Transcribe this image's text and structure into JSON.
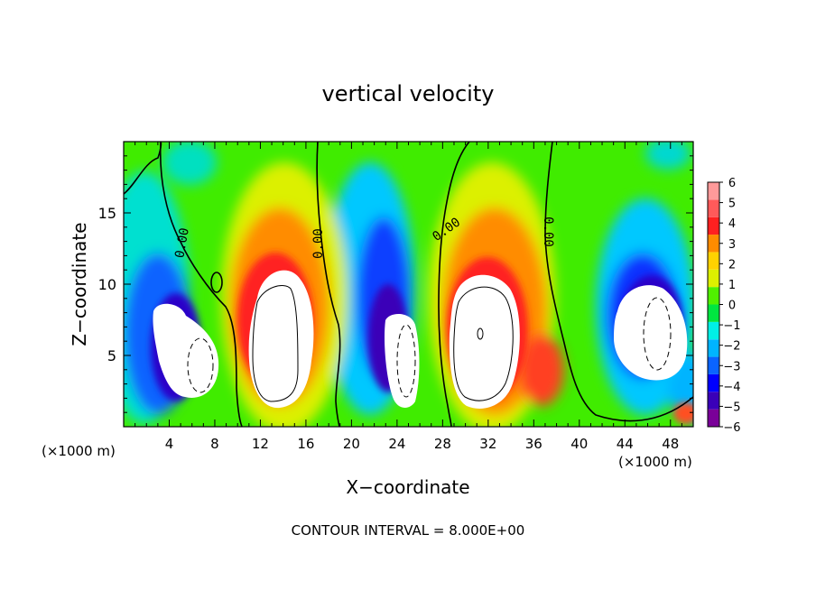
{
  "chart_data": {
    "type": "heatmap",
    "title": "vertical velocity",
    "xlabel": "X−coordinate",
    "ylabel": "Z−coordinate",
    "x_unit_left": "(×1000 m)",
    "x_unit_right": "(×1000 m)",
    "xlim": [
      0,
      50
    ],
    "ylim": [
      0,
      20
    ],
    "x_ticks": [
      4,
      8,
      12,
      16,
      20,
      24,
      28,
      32,
      36,
      40,
      44,
      48
    ],
    "y_ticks": [
      5,
      10,
      15
    ],
    "colorbar": {
      "ticks": [
        6,
        5,
        4,
        3,
        2,
        1,
        0,
        -1,
        -2,
        -3,
        -4,
        -5,
        -6
      ],
      "tick_labels": [
        "6",
        "5",
        "4",
        "3",
        "2",
        "1",
        "0",
        "−1",
        "−2",
        "−3",
        "−4",
        "−5",
        "−6"
      ],
      "colors": [
        "#7a0099",
        "#3a00b8",
        "#0000ff",
        "#0a64ff",
        "#00b4ff",
        "#00f0e6",
        "#00e640",
        "#50f000",
        "#dcf000",
        "#ffd200",
        "#ff8c00",
        "#ff2020",
        "#ff5a5a",
        "#ff9a9a"
      ]
    },
    "contour_labels": [
      "0.00",
      "0.00",
      "0.00",
      "0.00"
    ],
    "footer": "CONTOUR INTERVAL = 8.000E+00",
    "grid": false,
    "legend": "colorbar-right"
  }
}
